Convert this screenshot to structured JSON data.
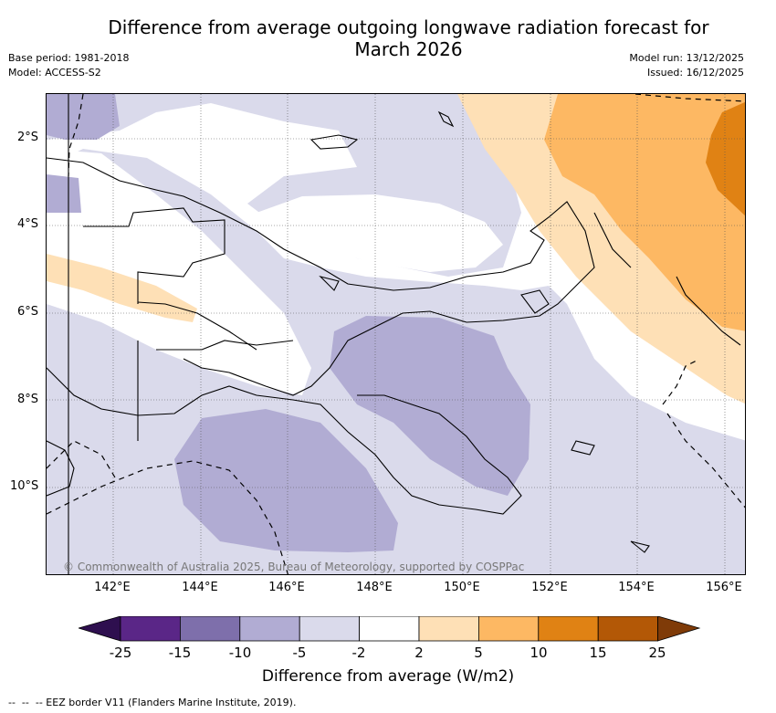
{
  "title_line1": "Difference from average outgoing longwave radiation forecast for",
  "title_line2": "March 2026",
  "meta_left": {
    "base_period": "Base period: 1981-2018",
    "model": "Model: ACCESS-S2"
  },
  "meta_right": {
    "model_run": "Model run: 13/12/2025",
    "issued": "Issued: 16/12/2025"
  },
  "map": {
    "lat_labels": [
      "2°S",
      "4°S",
      "6°S",
      "8°S",
      "10°S"
    ],
    "lon_labels": [
      "142°E",
      "144°E",
      "146°E",
      "148°E",
      "150°E",
      "152°E",
      "154°E",
      "156°E"
    ],
    "copyright": "© Commonwealth of Australia 2025, Bureau of Meteorology, supported by COSPPac"
  },
  "colorbar": {
    "ticks": [
      "-25",
      "-15",
      "-10",
      "-5",
      "-2",
      "2",
      "5",
      "10",
      "15",
      "25"
    ],
    "colors": [
      "#2e0f4f",
      "#5a2687",
      "#7e6fab",
      "#b1acd3",
      "#dadaeb",
      "#ffffff",
      "#fee0b6",
      "#fdb863",
      "#e08214",
      "#b35806",
      "#7f3b08"
    ],
    "label": "Difference from average (W/m2)"
  },
  "legend": {
    "eez": "-- EEZ border V11 (Flanders Marine Institute, 2019)."
  }
}
